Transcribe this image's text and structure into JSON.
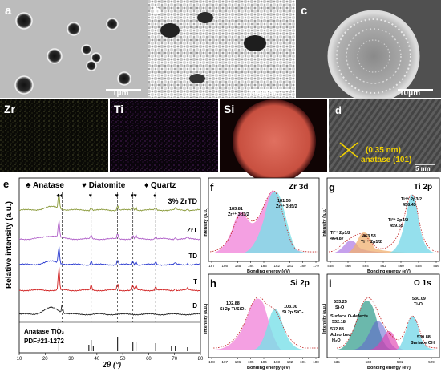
{
  "panels": {
    "a": {
      "letter": "a",
      "scale": "1μm"
    },
    "b": {
      "letter": "b",
      "scale": "500nm"
    },
    "c": {
      "letter": "c",
      "scale": "10μm"
    },
    "eds": {
      "zr": "Zr",
      "ti": "Ti",
      "si": "Si"
    },
    "d": {
      "letter": "d",
      "spacing": "(0.35 nm)",
      "plane": "anatase (101)",
      "scale": "5 nm"
    }
  },
  "xrd": {
    "letter": "e",
    "legend": {
      "anatase": "♣ Anatase",
      "diatomite": "♥ Diatomite",
      "quartz": "♦ Quartz"
    },
    "ylabel": "Relative intensity (a.u.)",
    "xlabel": "2θ (°)",
    "ref_label_1": "Anatase TiO₂",
    "ref_label_2": "PDF#21-1272",
    "chart_data": {
      "type": "line",
      "xlim": [
        10,
        80
      ],
      "xticks": [
        10,
        20,
        30,
        40,
        50,
        60,
        70,
        80
      ],
      "series": [
        {
          "name": "3% ZrTD",
          "color": "#8a9a3a"
        },
        {
          "name": "ZrT",
          "color": "#b060c8"
        },
        {
          "name": "TD",
          "color": "#2a3ad0"
        },
        {
          "name": "T",
          "color": "#d02020"
        },
        {
          "name": "D",
          "color": "#222222"
        }
      ],
      "peak_markers": [
        25.3,
        26.6,
        37.8,
        48.0,
        53.9,
        55.1,
        62.7
      ],
      "reference_lines": [
        25.3,
        36.9,
        37.8,
        38.6,
        48.0,
        53.9,
        55.1,
        62.7,
        68.8,
        70.3,
        75.0
      ]
    }
  },
  "xps": {
    "f": {
      "letter": "f",
      "element": "Zr 3d",
      "xlabel": "Bonding energy (eV)",
      "ylabel": "Intensity (a.u.)",
      "xticks": [
        "187",
        "186",
        "185",
        "184",
        "183",
        "182",
        "181",
        "180",
        "179"
      ],
      "peak1": {
        "value": "183.81",
        "label": "Zr⁴⁺ 3d3/2"
      },
      "peak2": {
        "value": "181.55",
        "label": "Zr⁴⁺ 3d5/2"
      }
    },
    "g": {
      "letter": "g",
      "element": "Ti 2p",
      "xlabel": "Bonding energy (eV)",
      "ylabel": "Intensity (a.u.)",
      "xticks": [
        "468",
        "466",
        "464",
        "462",
        "460",
        "458",
        "456"
      ],
      "p1": {
        "value": "458.43",
        "label": "Ti⁴⁺ 2p3/2"
      },
      "p2": {
        "value": "459.55",
        "label": "Ti³⁺ 2p3/2"
      },
      "p3": {
        "value": "463.53",
        "label": "Ti⁴⁺ 2p1/2"
      },
      "p4": {
        "value": "464.87",
        "label": "Ti³⁺ 2p1/2"
      }
    },
    "h": {
      "letter": "h",
      "element": "Si 2p",
      "xlabel": "Bonding energy (eV)",
      "ylabel": "Intensity (a.u.)",
      "xticks": [
        "108",
        "107",
        "106",
        "105",
        "104",
        "103",
        "102",
        "101",
        "100"
      ],
      "p1": {
        "value": "102.88",
        "label": "Si 2p Ti/SiO₂"
      },
      "p2": {
        "value": "103.00",
        "label": "Si 2p SiO₂"
      }
    },
    "i": {
      "letter": "i",
      "element": "O 1s",
      "xlabel": "Bonding energy (eV)",
      "ylabel": "Intensity (a.u.)",
      "xticks": [
        "535",
        "533",
        "531",
        "529"
      ],
      "p1": {
        "value": "533.25",
        "label": "Si-O"
      },
      "p2": {
        "value": "532.18",
        "label": "Surface O-defects"
      },
      "p3": {
        "value": "532.88",
        "label1": "Adsorbed",
        "label2": "H₂O"
      },
      "p4": {
        "value": "530.09",
        "label": "Ti-O"
      },
      "p5": {
        "value": "530.88",
        "label": "Surface OH"
      }
    }
  }
}
